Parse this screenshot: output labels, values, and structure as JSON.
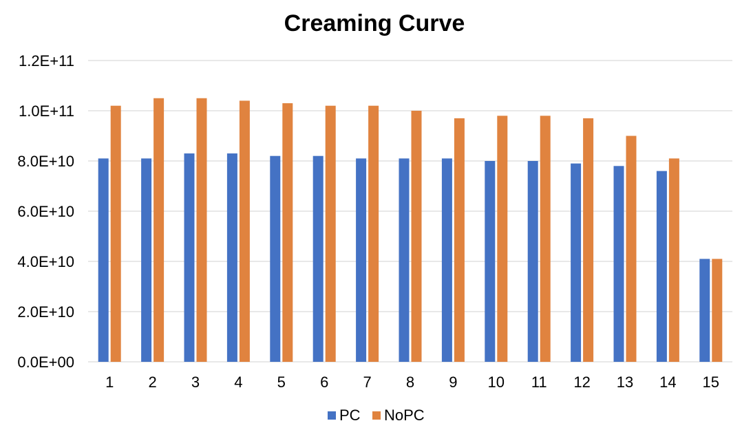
{
  "chart_data": {
    "type": "bar",
    "title": "Creaming Curve",
    "xlabel": "",
    "ylabel": "",
    "categories": [
      "1",
      "2",
      "3",
      "4",
      "5",
      "6",
      "7",
      "8",
      "9",
      "10",
      "11",
      "12",
      "13",
      "14",
      "15"
    ],
    "series": [
      {
        "name": "PC",
        "color": "#4472C4",
        "values": [
          81000000000.0,
          81000000000.0,
          83000000000.0,
          83000000000.0,
          82000000000.0,
          82000000000.0,
          81000000000.0,
          81000000000.0,
          81000000000.0,
          80000000000.0,
          80000000000.0,
          79000000000.0,
          78000000000.0,
          76000000000.0,
          41000000000.0
        ]
      },
      {
        "name": "NoPC",
        "color": "#E0833F",
        "values": [
          102000000000.0,
          105000000000.0,
          105000000000.0,
          104000000000.0,
          103000000000.0,
          102000000000.0,
          102000000000.0,
          100000000000.0,
          97000000000.0,
          98000000000.0,
          98000000000.0,
          97000000000.0,
          90000000000.0,
          81000000000.0,
          41000000000.0
        ]
      }
    ],
    "ylim": [
      0,
      120000000000.0
    ],
    "yticks": [
      0,
      20000000000.0,
      40000000000.0,
      60000000000.0,
      80000000000.0,
      100000000000.0,
      120000000000.0
    ],
    "ytick_labels": [
      "0.0E+00",
      "2.0E+10",
      "4.0E+10",
      "6.0E+10",
      "8.0E+10",
      "1.0E+11",
      "1.2E+11"
    ],
    "grid": true,
    "gridline_color": "#D9D9D9",
    "legend_position": "bottom"
  }
}
